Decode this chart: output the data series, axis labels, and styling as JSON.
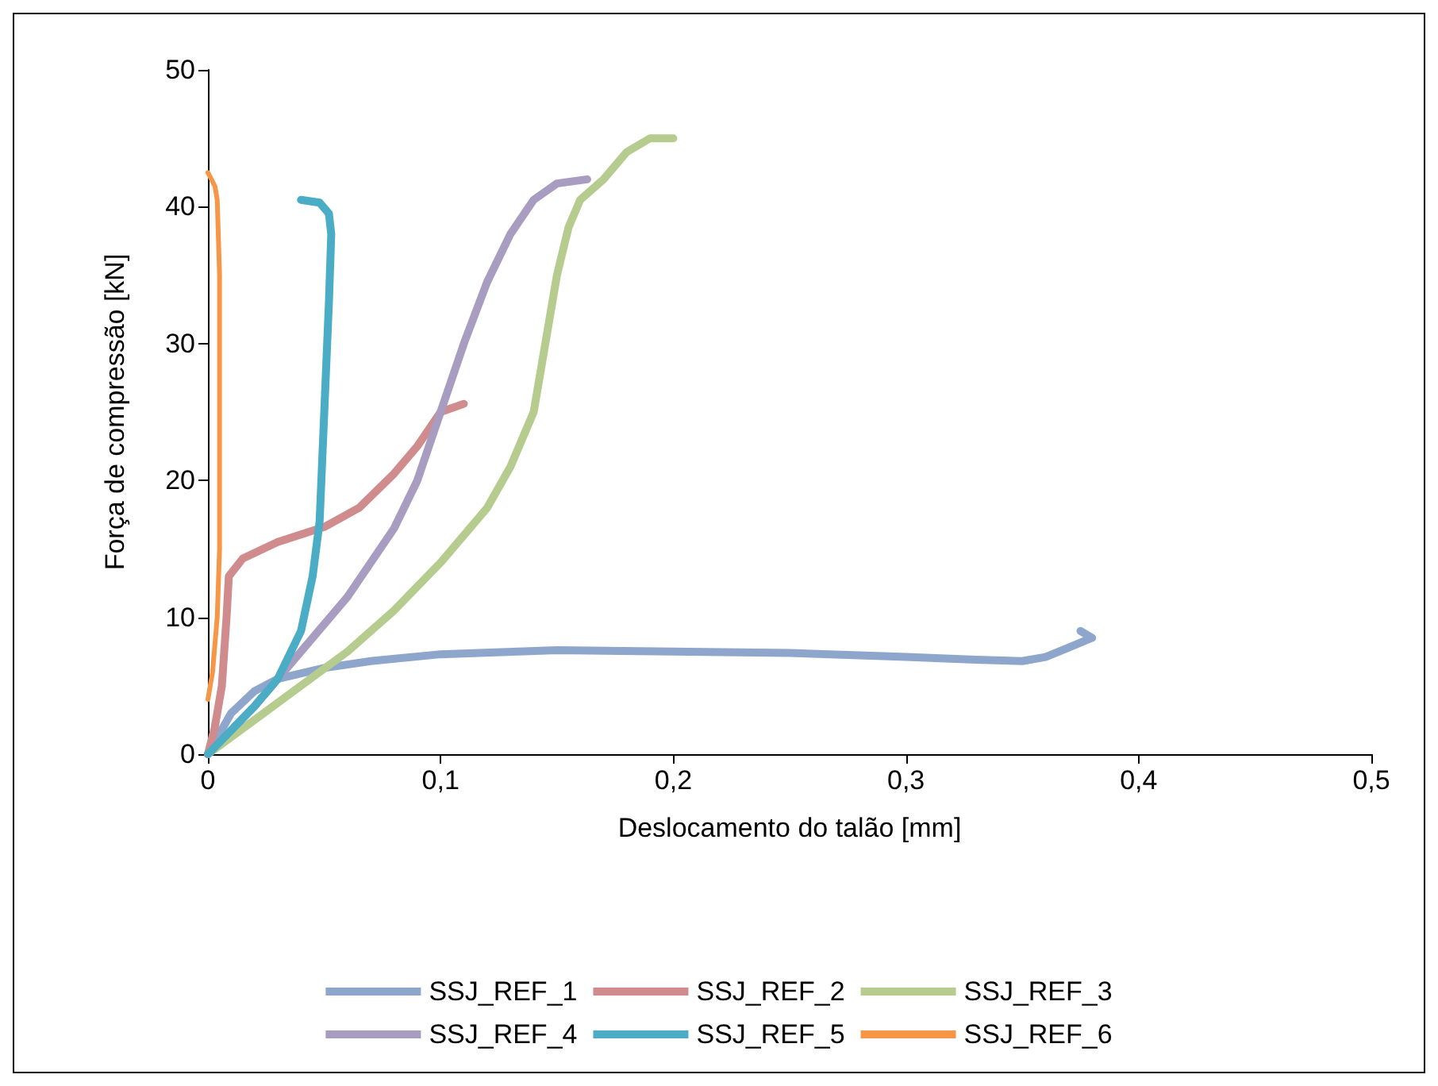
{
  "chart_data": {
    "type": "line",
    "xlabel": "Deslocamento do talão [mm]",
    "ylabel": "Força de compressão [kN]",
    "xlim": [
      0,
      0.5
    ],
    "ylim": [
      0,
      50
    ],
    "xticks": [
      0,
      {
        "value": 0.1,
        "label": "0,1"
      },
      {
        "value": 0.2,
        "label": "0,2"
      },
      {
        "value": 0.3,
        "label": "0,3"
      },
      {
        "value": 0.4,
        "label": "0,4"
      },
      {
        "value": 0.5,
        "label": "0,5"
      }
    ],
    "yticks": [
      0,
      10,
      20,
      30,
      40,
      50
    ],
    "grid": false,
    "legend": "bottom",
    "marker": "none",
    "line_style": "solid",
    "series": [
      {
        "name": "SSJ_REF_1",
        "color": "#8ea5cc",
        "x": [
          0,
          0.01,
          0.02,
          0.03,
          0.05,
          0.07,
          0.1,
          0.15,
          0.2,
          0.25,
          0.3,
          0.33,
          0.35,
          0.36,
          0.37,
          0.38,
          0.375
        ],
        "values": [
          0,
          3,
          4.6,
          5.5,
          6.3,
          6.8,
          7.3,
          7.6,
          7.5,
          7.4,
          7.1,
          6.9,
          6.8,
          7.1,
          7.8,
          8.5,
          9
        ]
      },
      {
        "name": "SSJ_REF_2",
        "color": "#d08c8c",
        "x": [
          0,
          0.003,
          0.006,
          0.008,
          0.009,
          0.015,
          0.03,
          0.05,
          0.065,
          0.08,
          0.09,
          0.1,
          0.11
        ],
        "values": [
          0,
          2,
          5,
          10,
          13,
          14.3,
          15.5,
          16.6,
          18,
          20.5,
          22.5,
          25,
          25.6
        ]
      },
      {
        "name": "SSJ_REF_3",
        "color": "#b5cc8e",
        "x": [
          0,
          0.02,
          0.04,
          0.06,
          0.08,
          0.1,
          0.12,
          0.13,
          0.14,
          0.145,
          0.15,
          0.155,
          0.16,
          0.17,
          0.18,
          0.19,
          0.2
        ],
        "values": [
          0,
          2.5,
          5,
          7.5,
          10.5,
          14,
          18,
          21,
          25,
          30,
          35,
          38.5,
          40.5,
          42,
          44,
          45,
          45
        ]
      },
      {
        "name": "SSJ_REF_4",
        "color": "#a89cc0",
        "x": [
          0,
          0.02,
          0.04,
          0.06,
          0.08,
          0.09,
          0.1,
          0.11,
          0.12,
          0.13,
          0.14,
          0.15,
          0.163
        ],
        "values": [
          0,
          3.5,
          7.5,
          11.5,
          16.5,
          20,
          25,
          30,
          34.5,
          38,
          40.5,
          41.7,
          42
        ]
      },
      {
        "name": "SSJ_REF_5",
        "color": "#4bacc6",
        "x": [
          0,
          0.02,
          0.03,
          0.04,
          0.045,
          0.048,
          0.05,
          0.052,
          0.053,
          0.052,
          0.048,
          0.04
        ],
        "values": [
          0,
          3.5,
          5.5,
          9,
          13,
          17,
          25,
          33,
          38,
          39.5,
          40.3,
          40.5
        ]
      },
      {
        "name": "SSJ_REF_6",
        "color": "#f79646",
        "x": [
          0,
          0.002,
          0.004,
          0.005,
          0.005,
          0.005,
          0.004,
          0.003,
          0
        ],
        "values": [
          4,
          6,
          10,
          15,
          25,
          35,
          40.5,
          41.5,
          42.5
        ]
      }
    ]
  }
}
